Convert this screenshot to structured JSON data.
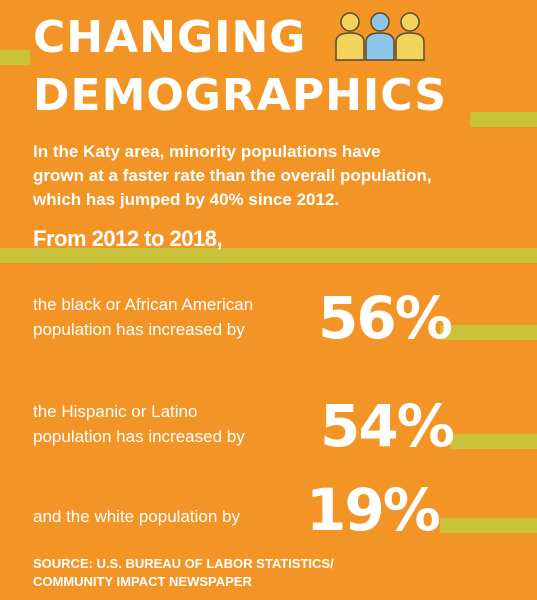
{
  "title": {
    "lines": [
      "CHANGING",
      "DEMOGRAPHICS"
    ]
  },
  "intro": {
    "lines": [
      "In the Katy area, minority populations have",
      "grown at a faster rate than the overall population,",
      "which has jumped by 40% since 2012."
    ]
  },
  "period": "From 2012 to 2018,",
  "stats": [
    {
      "lines": [
        "the black or African American",
        "population has increased by"
      ],
      "figure": "56%"
    },
    {
      "lines": [
        "the Hispanic or Latino",
        "population has increased by"
      ],
      "figure": "54%"
    },
    {
      "lines": [
        "and the white population by"
      ],
      "figure": "19%"
    }
  ],
  "source": {
    "lines": [
      "SOURCE: U.S. BUREAU OF LABOR STATISTICS/",
      "COMMUNITY IMPACT NEWSPAPER"
    ]
  }
}
